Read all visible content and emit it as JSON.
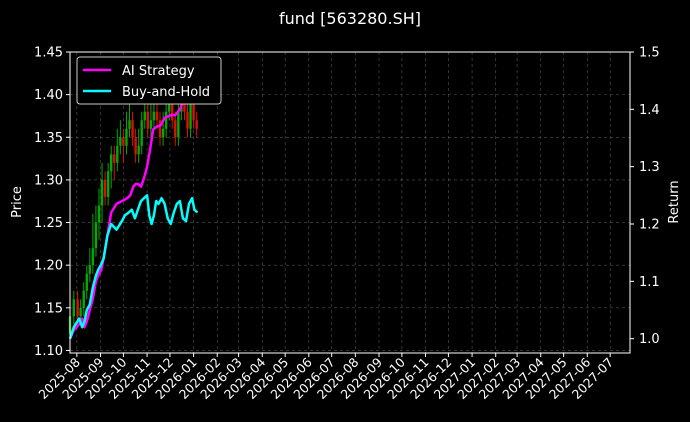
{
  "chart_data": {
    "type": "line",
    "title": "fund [563280.SH]",
    "ylabel": "Price",
    "y2label": "Return",
    "ylim": [
      1.097,
      1.45
    ],
    "y2lim": [
      0.975,
      1.5
    ],
    "yticks": [
      "1.10",
      "1.15",
      "1.20",
      "1.25",
      "1.30",
      "1.35",
      "1.40",
      "1.45"
    ],
    "y2ticks": [
      "1.0",
      "1.1",
      "1.2",
      "1.3",
      "1.4",
      "1.5"
    ],
    "xlim": [
      "2025-07-23",
      "2027-07-27"
    ],
    "xticks": [
      "2025-08",
      "2025-09",
      "2025-10",
      "2025-11",
      "2025-12",
      "2026-01",
      "2026-02",
      "2026-03",
      "2026-04",
      "2026-05",
      "2026-06",
      "2026-07",
      "2026-08",
      "2026-09",
      "2026-10",
      "2026-11",
      "2026-12",
      "2027-01",
      "2027-02",
      "2027-03",
      "2027-04",
      "2027-05",
      "2027-06",
      "2027-07"
    ],
    "grid": true,
    "legend_position": "top-left",
    "colors": {
      "ai": "#ff00ff",
      "bh": "#00ffff",
      "up": "#00aa00",
      "down": "#dd1100",
      "grid": "#555555"
    },
    "series": [
      {
        "name": "AI Strategy",
        "axis": "right",
        "x": [
          "2025-07-23",
          "2025-07-28",
          "2025-08-04",
          "2025-08-08",
          "2025-08-11",
          "2025-08-14",
          "2025-08-18",
          "2025-08-22",
          "2025-08-26",
          "2025-08-29",
          "2025-09-02",
          "2025-09-05",
          "2025-09-10",
          "2025-09-15",
          "2025-09-22",
          "2025-09-29",
          "2025-10-06",
          "2025-10-10",
          "2025-10-14",
          "2025-10-17",
          "2025-10-20",
          "2025-10-24",
          "2025-10-28",
          "2025-11-01",
          "2025-11-05",
          "2025-11-09",
          "2025-11-14",
          "2025-11-19",
          "2025-11-24",
          "2025-11-29",
          "2025-12-03",
          "2025-12-08",
          "2025-12-14",
          "2025-12-20",
          "2025-12-24",
          "2025-12-28"
        ],
        "values": [
          1.0,
          1.015,
          1.025,
          1.035,
          1.02,
          1.03,
          1.05,
          1.07,
          1.1,
          1.11,
          1.12,
          1.14,
          1.18,
          1.22,
          1.235,
          1.24,
          1.245,
          1.25,
          1.265,
          1.27,
          1.27,
          1.265,
          1.28,
          1.3,
          1.33,
          1.365,
          1.37,
          1.372,
          1.385,
          1.388,
          1.39,
          1.39,
          1.4,
          1.42,
          1.41,
          1.43
        ]
      },
      {
        "name": "Buy-and-Hold",
        "axis": "right",
        "x": [
          "2025-07-23",
          "2025-07-28",
          "2025-08-04",
          "2025-08-08",
          "2025-08-11",
          "2025-08-14",
          "2025-08-18",
          "2025-08-22",
          "2025-08-26",
          "2025-08-29",
          "2025-09-02",
          "2025-09-05",
          "2025-09-10",
          "2025-09-15",
          "2025-09-22",
          "2025-09-29",
          "2025-10-03",
          "2025-10-08",
          "2025-10-12",
          "2025-10-16",
          "2025-10-20",
          "2025-10-24",
          "2025-10-28",
          "2025-11-01",
          "2025-11-04",
          "2025-11-07",
          "2025-11-10",
          "2025-11-13",
          "2025-11-16",
          "2025-11-20",
          "2025-11-24",
          "2025-11-28",
          "2025-12-02",
          "2025-12-06",
          "2025-12-10",
          "2025-12-14",
          "2025-12-18",
          "2025-12-22",
          "2025-12-26",
          "2025-12-30",
          "2026-01-02",
          "2026-01-06"
        ],
        "values": [
          1.0,
          1.02,
          1.035,
          1.02,
          1.03,
          1.05,
          1.06,
          1.09,
          1.11,
          1.12,
          1.13,
          1.14,
          1.18,
          1.2,
          1.19,
          1.205,
          1.215,
          1.22,
          1.225,
          1.21,
          1.225,
          1.24,
          1.245,
          1.25,
          1.215,
          1.2,
          1.215,
          1.24,
          1.235,
          1.245,
          1.235,
          1.21,
          1.2,
          1.22,
          1.235,
          1.24,
          1.21,
          1.205,
          1.235,
          1.245,
          1.225,
          1.22
        ]
      },
      {
        "name": "Price",
        "axis": "left",
        "type": "candlestick",
        "x": [
          "2025-07-23",
          "2025-07-28",
          "2025-08-02",
          "2025-08-06",
          "2025-08-10",
          "2025-08-14",
          "2025-08-18",
          "2025-08-22",
          "2025-08-26",
          "2025-08-30",
          "2025-09-03",
          "2025-09-07",
          "2025-09-11",
          "2025-09-15",
          "2025-09-19",
          "2025-09-23",
          "2025-09-27",
          "2025-10-01",
          "2025-10-05",
          "2025-10-09",
          "2025-10-13",
          "2025-10-17",
          "2025-10-21",
          "2025-10-25",
          "2025-10-29",
          "2025-11-02",
          "2025-11-06",
          "2025-11-10",
          "2025-11-14",
          "2025-11-18",
          "2025-11-22",
          "2025-11-26",
          "2025-11-30",
          "2025-12-04",
          "2025-12-08",
          "2025-12-12",
          "2025-12-16",
          "2025-12-20",
          "2025-12-24",
          "2025-12-28",
          "2026-01-01",
          "2026-01-05"
        ],
        "open": [
          1.12,
          1.14,
          1.16,
          1.14,
          1.15,
          1.17,
          1.19,
          1.2,
          1.22,
          1.25,
          1.27,
          1.3,
          1.28,
          1.31,
          1.33,
          1.32,
          1.34,
          1.35,
          1.34,
          1.36,
          1.37,
          1.35,
          1.33,
          1.34,
          1.37,
          1.38,
          1.36,
          1.37,
          1.38,
          1.37,
          1.35,
          1.36,
          1.38,
          1.39,
          1.37,
          1.35,
          1.38,
          1.4,
          1.38,
          1.36,
          1.4,
          1.37
        ],
        "close": [
          1.14,
          1.16,
          1.14,
          1.15,
          1.17,
          1.19,
          1.2,
          1.22,
          1.25,
          1.27,
          1.3,
          1.28,
          1.31,
          1.33,
          1.32,
          1.34,
          1.35,
          1.34,
          1.36,
          1.37,
          1.35,
          1.33,
          1.34,
          1.37,
          1.38,
          1.36,
          1.37,
          1.38,
          1.37,
          1.35,
          1.36,
          1.38,
          1.39,
          1.37,
          1.35,
          1.38,
          1.4,
          1.38,
          1.36,
          1.4,
          1.37,
          1.36
        ],
        "high": [
          1.15,
          1.17,
          1.17,
          1.16,
          1.18,
          1.2,
          1.22,
          1.26,
          1.27,
          1.29,
          1.32,
          1.31,
          1.32,
          1.34,
          1.34,
          1.36,
          1.37,
          1.36,
          1.38,
          1.39,
          1.38,
          1.36,
          1.36,
          1.38,
          1.4,
          1.4,
          1.39,
          1.4,
          1.39,
          1.38,
          1.38,
          1.39,
          1.41,
          1.4,
          1.38,
          1.4,
          1.42,
          1.42,
          1.39,
          1.41,
          1.42,
          1.38
        ],
        "low": [
          1.11,
          1.13,
          1.13,
          1.13,
          1.14,
          1.16,
          1.18,
          1.19,
          1.21,
          1.23,
          1.25,
          1.27,
          1.27,
          1.29,
          1.3,
          1.31,
          1.33,
          1.32,
          1.33,
          1.35,
          1.34,
          1.32,
          1.32,
          1.33,
          1.36,
          1.35,
          1.35,
          1.36,
          1.36,
          1.34,
          1.34,
          1.35,
          1.37,
          1.36,
          1.34,
          1.34,
          1.37,
          1.37,
          1.35,
          1.35,
          1.36,
          1.35
        ]
      }
    ]
  }
}
